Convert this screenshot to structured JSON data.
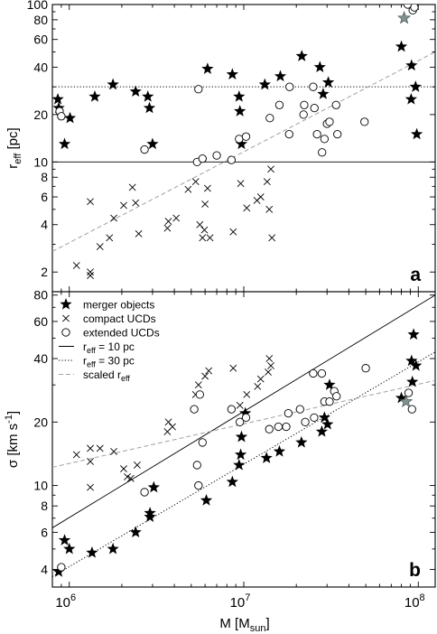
{
  "figure": {
    "x_label_main": "M [M",
    "x_label_sub": "sun",
    "x_label_end": "]",
    "x_ticks": [
      {
        "value": 1000000,
        "base": "10",
        "exp": "6"
      },
      {
        "value": 10000000,
        "base": "10",
        "exp": "7"
      },
      {
        "value": 100000000,
        "base": "10",
        "exp": "8"
      }
    ],
    "xlim": [
      800000,
      125000000
    ],
    "x_scale": "log"
  },
  "chart_data": [
    {
      "type": "scatter",
      "panel_label": "a",
      "ylabel_main": "r",
      "ylabel_sub": "eff",
      "ylabel_end": " [pc]",
      "yscale": "log",
      "ylim": [
        1.5,
        100
      ],
      "y_tick_labels": [
        "2",
        "4",
        "6",
        "8",
        "10",
        "20",
        "40",
        "60",
        "80",
        "100"
      ],
      "y_tick_values": [
        2,
        4,
        6,
        8,
        10,
        20,
        40,
        60,
        80,
        100
      ],
      "lines": [
        {
          "kind": "horizontal",
          "style": "solid",
          "y": 10
        },
        {
          "kind": "horizontal",
          "style": "dotted",
          "y": 30
        },
        {
          "kind": "powerlaw",
          "style": "dashed",
          "x": [
            800000,
            125000000
          ],
          "y": [
            2.7,
            50
          ]
        }
      ],
      "series": [
        {
          "marker": "star",
          "points": [
            [
              860000,
              25
            ],
            [
              870000,
              22
            ],
            [
              940000,
              13
            ],
            [
              1010000,
              19
            ],
            [
              1400000,
              26
            ],
            [
              1780000,
              31
            ],
            [
              2400000,
              28
            ],
            [
              2820000,
              26
            ],
            [
              2880000,
              22
            ],
            [
              3000000,
              13
            ],
            [
              6200000,
              39
            ],
            [
              8600000,
              36
            ],
            [
              9400000,
              26
            ],
            [
              9500000,
              21
            ],
            [
              9700000,
              13
            ],
            [
              13200000,
              31
            ],
            [
              16200000,
              35
            ],
            [
              21500000,
              47
            ],
            [
              27300000,
              40
            ],
            [
              28500000,
              27
            ],
            [
              30500000,
              32
            ],
            [
              80000000,
              54
            ],
            [
              91000000,
              25
            ],
            [
              91500000,
              41
            ],
            [
              96500000,
              30
            ],
            [
              98000000,
              15
            ]
          ]
        },
        {
          "marker": "cross",
          "points": [
            [
              1100000,
              2.2
            ],
            [
              1320000,
              1.9
            ],
            [
              1320000,
              2.0
            ],
            [
              1320000,
              5.6
            ],
            [
              1500000,
              2.9
            ],
            [
              1700000,
              3.3
            ],
            [
              1800000,
              4.4
            ],
            [
              2050000,
              5.3
            ],
            [
              2300000,
              6.9
            ],
            [
              2400000,
              5.5
            ],
            [
              2500000,
              3.5
            ],
            [
              3650000,
              3.8
            ],
            [
              3700000,
              4.2
            ],
            [
              4100000,
              4.4
            ],
            [
              4800000,
              6.7
            ],
            [
              5300000,
              7.5
            ],
            [
              5600000,
              4.0
            ],
            [
              5800000,
              3.3
            ],
            [
              5950000,
              3.7
            ],
            [
              6000000,
              5.4
            ],
            [
              6200000,
              6.8
            ],
            [
              6400000,
              3.3
            ],
            [
              8700000,
              3.6
            ],
            [
              9600000,
              7.3
            ],
            [
              10400000,
              5.1
            ],
            [
              11900000,
              5.7
            ],
            [
              12500000,
              6.0
            ],
            [
              13600000,
              7.5
            ],
            [
              14000000,
              5.0
            ],
            [
              14300000,
              9.0
            ],
            [
              14500000,
              3.3
            ]
          ]
        },
        {
          "marker": "circle",
          "points": [
            [
              880000,
              21
            ],
            [
              900000,
              19.5
            ],
            [
              2700000,
              12
            ],
            [
              5400000,
              10
            ],
            [
              5500000,
              29
            ],
            [
              5800000,
              10.5
            ],
            [
              7000000,
              11
            ],
            [
              8500000,
              10.3
            ],
            [
              9400000,
              14
            ],
            [
              10300000,
              14.5
            ],
            [
              14100000,
              19
            ],
            [
              16000000,
              23
            ],
            [
              18200000,
              15
            ],
            [
              18300000,
              30
            ],
            [
              22000000,
              20
            ],
            [
              22200000,
              23
            ],
            [
              25000000,
              30
            ],
            [
              25400000,
              22
            ],
            [
              26300000,
              15
            ],
            [
              28100000,
              11.5
            ],
            [
              29000000,
              14
            ],
            [
              30000000,
              17.5
            ],
            [
              31000000,
              18
            ],
            [
              33800000,
              23
            ],
            [
              34400000,
              15
            ],
            [
              49200000,
              18
            ]
          ]
        },
        {
          "marker": "star-grey",
          "points": [
            [
              83000000,
              82
            ]
          ]
        },
        {
          "marker": "circle",
          "points": [
            [
              87000000,
              100
            ],
            [
              93000000,
              92
            ],
            [
              95000000,
              96
            ]
          ]
        }
      ]
    },
    {
      "type": "scatter",
      "panel_label": "b",
      "ylabel_main": "σ [km s",
      "ylabel_sup": "-1",
      "ylabel_end": "]",
      "yscale": "log",
      "ylim": [
        3.3,
        83
      ],
      "y_tick_labels": [
        "4",
        "6",
        "8",
        "10",
        "20",
        "40",
        "60",
        "80"
      ],
      "y_tick_values": [
        4,
        6,
        8,
        10,
        20,
        40,
        60,
        80
      ],
      "legend": {
        "location": "upper left",
        "entries": [
          {
            "marker": "star",
            "label": "merger objects"
          },
          {
            "marker": "cross",
            "label": "compact UCDs"
          },
          {
            "marker": "circle",
            "label": "extended UCDs"
          },
          {
            "marker": "solid-line",
            "label_main": "r",
            "label_sub": "eff",
            "label_end": " = 10 pc"
          },
          {
            "marker": "dotted-line",
            "label_main": "r",
            "label_sub": "eff",
            "label_end": " = 30 pc"
          },
          {
            "marker": "dashed-line",
            "label_main": "scaled r",
            "label_sub": "eff",
            "label_end": ""
          }
        ]
      },
      "lines": [
        {
          "kind": "powerlaw",
          "style": "solid",
          "x": [
            800000,
            125000000
          ],
          "y": [
            6.3,
            80
          ]
        },
        {
          "kind": "powerlaw",
          "style": "dotted",
          "x": [
            800000,
            125000000
          ],
          "y": [
            3.7,
            43
          ]
        },
        {
          "kind": "powerlaw",
          "style": "dashed",
          "x": [
            800000,
            125000000
          ],
          "y": [
            12.2,
            31.5
          ]
        }
      ],
      "series": [
        {
          "marker": "star",
          "points": [
            [
              870000,
              3.9
            ],
            [
              940000,
              5.5
            ],
            [
              1000000,
              5.0
            ],
            [
              1350000,
              4.8
            ],
            [
              1780000,
              5.0
            ],
            [
              2400000,
              6.0
            ],
            [
              2900000,
              7.4
            ],
            [
              2900000,
              7.1
            ],
            [
              3050000,
              9.8
            ],
            [
              6100000,
              8.5
            ],
            [
              8600000,
              10.4
            ],
            [
              9400000,
              12.5
            ],
            [
              9600000,
              14.0
            ],
            [
              9700000,
              17.0
            ],
            [
              10200000,
              22.0
            ],
            [
              13500000,
              13.5
            ],
            [
              16000000,
              14.5
            ],
            [
              21400000,
              16.0
            ],
            [
              28000000,
              18.0
            ],
            [
              29000000,
              21.0
            ],
            [
              30200000,
              19.5
            ],
            [
              31000000,
              30.0
            ],
            [
              80000000,
              26.0
            ],
            [
              91500000,
              39.0
            ],
            [
              92500000,
              31.0
            ],
            [
              94000000,
              52.0
            ],
            [
              97000000,
              37.0
            ]
          ]
        },
        {
          "marker": "cross",
          "points": [
            [
              1100000,
              14.0
            ],
            [
              1320000,
              9.8
            ],
            [
              1320000,
              15.0
            ],
            [
              1320000,
              13.0
            ],
            [
              1500000,
              15.0
            ],
            [
              1800000,
              14.5
            ],
            [
              2050000,
              12.0
            ],
            [
              2150000,
              11.0
            ],
            [
              2250000,
              10.8
            ],
            [
              2450000,
              12.5
            ],
            [
              3650000,
              18.0
            ],
            [
              3700000,
              20.0
            ],
            [
              3900000,
              19.0
            ],
            [
              5300000,
              27.0
            ],
            [
              5500000,
              30.0
            ],
            [
              6000000,
              33.0
            ],
            [
              6300000,
              35.0
            ],
            [
              8700000,
              36.0
            ],
            [
              9500000,
              24.0
            ],
            [
              10400000,
              27.0
            ],
            [
              12000000,
              29.5
            ],
            [
              12500000,
              32.0
            ],
            [
              13800000,
              34.5
            ],
            [
              14000000,
              40.0
            ],
            [
              14300000,
              37.0
            ]
          ]
        },
        {
          "marker": "circle",
          "points": [
            [
              900000,
              4.1
            ],
            [
              2700000,
              9.3
            ],
            [
              5400000,
              12.5
            ],
            [
              5500000,
              10.0
            ],
            [
              5200000,
              23.0
            ],
            [
              5600000,
              27.0
            ],
            [
              5800000,
              16.0
            ],
            [
              8500000,
              23.0
            ],
            [
              9500000,
              20.0
            ],
            [
              10300000,
              21.0
            ],
            [
              14000000,
              18.5
            ],
            [
              15800000,
              19.0
            ],
            [
              17500000,
              19.0
            ],
            [
              18000000,
              22.0
            ],
            [
              21000000,
              23.0
            ],
            [
              22500000,
              20.0
            ],
            [
              25000000,
              34.0
            ],
            [
              25300000,
              21.0
            ],
            [
              28000000,
              34.0
            ],
            [
              29000000,
              25.0
            ],
            [
              31000000,
              25.0
            ],
            [
              33000000,
              28.0
            ],
            [
              34000000,
              26.5
            ],
            [
              50000000,
              36.0
            ],
            [
              88000000,
              27.5
            ],
            [
              92000000,
              23.0
            ]
          ]
        },
        {
          "marker": "star-grey",
          "points": [
            [
              85000000,
              25.0
            ]
          ]
        }
      ]
    }
  ]
}
